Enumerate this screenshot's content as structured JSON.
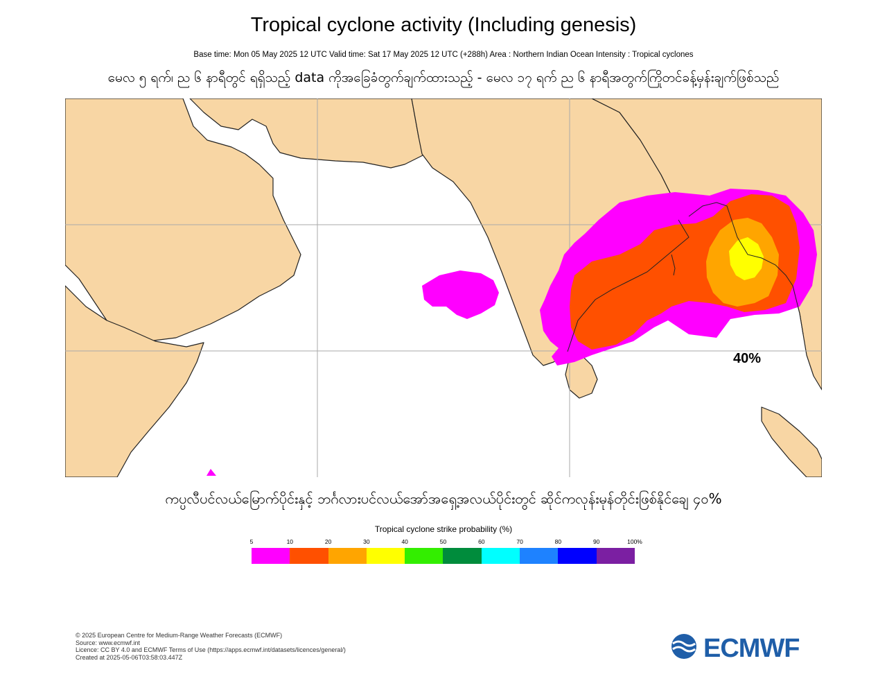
{
  "header": {
    "title": "Tropical cyclone activity (Including genesis)",
    "subtitle": "Base time: Mon 05 May 2025 12 UTC Valid time: Sat 17 May 2025 12 UTC (+288h) Area : Northern Indian Ocean Intensity : Tropical cyclones",
    "myanmar_note": "မေလ ၅ ရက်၊ ည ၆ နာရီတွင် ရရှိသည့် data ကိုအခြေခံတွက်ချက်ထားသည့် - မေလ ၁၇ ရက် ည ၆ နာရီအတွက်ကြိုတင်ခန့်မှန်းချက်ဖြစ်သည်"
  },
  "map": {
    "region": "Northern Indian Ocean",
    "land_color": "#f8d6a4",
    "sea_color": "#ffffff",
    "peak_probability_label": "40%"
  },
  "caption_myanmar": "ကပ္ပလီပင်လယ်မြောက်ပိုင်းနှင့် ဘင်္ဂလားပင်လယ်အော်အရှေ့အလယ်ပိုင်းတွင် ဆိုင်ကလုန်းမုန်တိုင်းဖြစ်နိုင်ချေ ၄၀%",
  "legend": {
    "title": "Tropical cyclone strike probability (%)",
    "ticks": [
      "5",
      "10",
      "20",
      "30",
      "40",
      "50",
      "60",
      "70",
      "80",
      "90",
      "100%"
    ],
    "colors": [
      "#ff00ff",
      "#ff5000",
      "#ffa500",
      "#ffff00",
      "#33ee00",
      "#008c3c",
      "#00ffff",
      "#1e82ff",
      "#0000ff",
      "#7b1fa2"
    ]
  },
  "footer": {
    "lines": [
      "© 2025 European Centre for Medium-Range Weather Forecasts (ECMWF)",
      "Source: www.ecmwf.int",
      "Licence: CC BY 4.0 and ECMWF Terms of Use (https://apps.ecmwf.int/datasets/licences/general/)",
      "Created at 2025-05-06T03:58:03.447Z"
    ],
    "logo_text": "ECMWF"
  }
}
